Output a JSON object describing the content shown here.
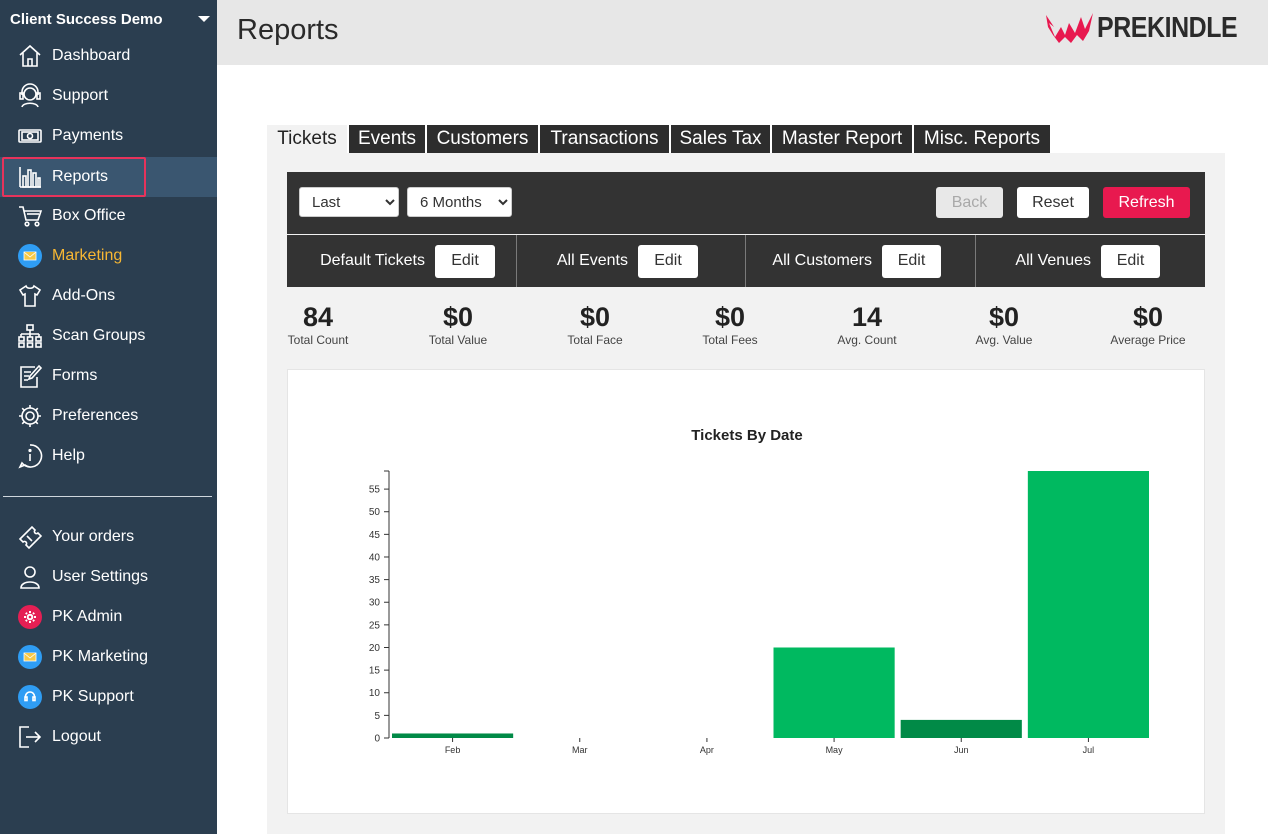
{
  "sidebar": {
    "org_name": "Client Success Demo",
    "items": [
      {
        "label": "Dashboard",
        "icon": "home-icon"
      },
      {
        "label": "Support",
        "icon": "headset-icon"
      },
      {
        "label": "Payments",
        "icon": "cash-icon"
      },
      {
        "label": "Reports",
        "icon": "bar-chart-icon"
      },
      {
        "label": "Box Office",
        "icon": "cart-icon"
      },
      {
        "label": "Marketing",
        "icon": "envelope-icon"
      },
      {
        "label": "Add-Ons",
        "icon": "shirt-icon"
      },
      {
        "label": "Scan Groups",
        "icon": "sitemap-icon"
      },
      {
        "label": "Forms",
        "icon": "form-icon"
      },
      {
        "label": "Preferences",
        "icon": "gear-icon"
      },
      {
        "label": "Help",
        "icon": "help-icon"
      }
    ],
    "bottom_items": [
      {
        "label": "Your orders",
        "icon": "ticket-icon"
      },
      {
        "label": "User Settings",
        "icon": "user-icon"
      },
      {
        "label": "PK Admin",
        "icon": "gear-badge-icon"
      },
      {
        "label": "PK Marketing",
        "icon": "envelope-badge-icon"
      },
      {
        "label": "PK Support",
        "icon": "headset-badge-icon"
      },
      {
        "label": "Logout",
        "icon": "logout-icon"
      }
    ]
  },
  "header": {
    "title": "Reports",
    "logo_text": "PREKINDLE"
  },
  "tabs": [
    "Tickets",
    "Events",
    "Customers",
    "Transactions",
    "Sales Tax",
    "Master Report",
    "Misc. Reports"
  ],
  "toolbar": {
    "range_select": "Last",
    "period_select": "6 Months",
    "back_label": "Back",
    "reset_label": "Reset",
    "refresh_label": "Refresh"
  },
  "filters": [
    {
      "label": "Default Tickets",
      "button": "Edit"
    },
    {
      "label": "All Events",
      "button": "Edit"
    },
    {
      "label": "All Customers",
      "button": "Edit"
    },
    {
      "label": "All Venues",
      "button": "Edit"
    }
  ],
  "stats": [
    {
      "value": "84",
      "label": "Total Count"
    },
    {
      "value": "$0",
      "label": "Total Value"
    },
    {
      "value": "$0",
      "label": "Total Face"
    },
    {
      "value": "$0",
      "label": "Total Fees"
    },
    {
      "value": "14",
      "label": "Avg. Count"
    },
    {
      "value": "$0",
      "label": "Avg. Value"
    },
    {
      "value": "$0",
      "label": "Average Price"
    }
  ],
  "colors": {
    "sidebar_bg": "#2b3e50",
    "accent_red": "#e8194f",
    "marketing_yellow": "#f7b733",
    "bar_green": "#00b960",
    "bar_dark_green": "#018a47"
  },
  "chart_data": {
    "type": "bar",
    "title": "Tickets By Date",
    "categories": [
      "Feb",
      "Mar",
      "Apr",
      "May",
      "Jun",
      "Jul"
    ],
    "values": [
      1,
      0,
      0,
      20,
      4,
      59
    ],
    "bar_colors": [
      "#018a47",
      "#00b960",
      "#00b960",
      "#00b960",
      "#018a47",
      "#00b960"
    ],
    "yticks": [
      0,
      5,
      10,
      15,
      20,
      25,
      30,
      35,
      40,
      45,
      50,
      55
    ],
    "ylim": [
      0,
      59
    ],
    "xlabel": "",
    "ylabel": "",
    "grid": false
  }
}
